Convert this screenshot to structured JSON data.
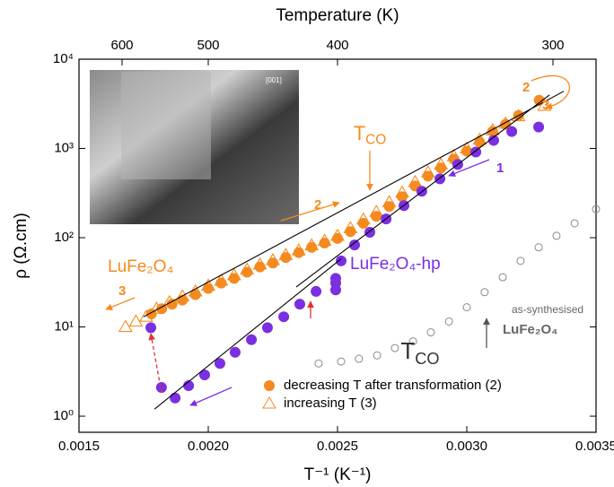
{
  "chart_data": {
    "type": "scatter",
    "x2label": "Temperature (K)",
    "xlabel": "T⁻¹ (K⁻¹)",
    "ylabel": "ρ (Ω.cm)",
    "xlim": [
      0.0015,
      0.0035
    ],
    "xticks": [
      {
        "value": 0.0015,
        "label": "0.0015"
      },
      {
        "value": 0.002,
        "label": "0.0020"
      },
      {
        "value": 0.0025,
        "label": "0.0025"
      },
      {
        "value": 0.003,
        "label": "0.0030"
      },
      {
        "value": 0.0035,
        "label": "0.0035"
      }
    ],
    "x2scale": "reciprocal",
    "x2ticks": [
      600,
      500,
      400,
      300
    ],
    "ylim": [
      0.66,
      10000
    ],
    "yscale": "log",
    "yticks": [
      {
        "value": 1,
        "label": "10⁰"
      },
      {
        "value": 10,
        "label": "10¹"
      },
      {
        "value": 100,
        "label": "10²"
      },
      {
        "value": 1000,
        "label": "10³"
      },
      {
        "value": 10000,
        "label": "10⁴"
      }
    ],
    "legend": "lower right",
    "series": [
      {
        "name": "decreasing T after transformation (2)",
        "color": "#f58a1f",
        "marker": "circle",
        "x": [
          0.00178,
          0.00182,
          0.00186,
          0.0019,
          0.00195,
          0.002,
          0.00205,
          0.0021,
          0.00215,
          0.0022,
          0.00225,
          0.0023,
          0.00235,
          0.0024,
          0.00245,
          0.0025,
          0.00255,
          0.0026,
          0.00265,
          0.0027,
          0.00275,
          0.0028,
          0.00285,
          0.0029,
          0.00295,
          0.003,
          0.00305,
          0.0031,
          0.00315,
          0.0032,
          0.00328
        ],
        "values": [
          14,
          16,
          18,
          20,
          23,
          27,
          31,
          35,
          41,
          47,
          52,
          60,
          68,
          78,
          87,
          98,
          117,
          145,
          174,
          224,
          288,
          380,
          490,
          603,
          759,
          933,
          1175,
          1549,
          1862,
          2344,
          3467
        ]
      },
      {
        "name": "increasing T (3)",
        "color": "#f58a1f",
        "marker": "triangle-open",
        "x": [
          0.00168,
          0.00172,
          0.00176,
          0.0018,
          0.00185,
          0.0019,
          0.00195,
          0.002,
          0.00205,
          0.0021,
          0.00215,
          0.0022,
          0.00225,
          0.0023,
          0.00235,
          0.0024,
          0.00245,
          0.0025,
          0.00255,
          0.0026,
          0.00265,
          0.0027,
          0.00275,
          0.0028,
          0.00285,
          0.0029,
          0.00295,
          0.003,
          0.00305,
          0.0031,
          0.00315,
          0.0032,
          0.0033
        ],
        "values": [
          10,
          11.5,
          13,
          16,
          19,
          22,
          25,
          29,
          33,
          38,
          44,
          50,
          56,
          64,
          72,
          82,
          92,
          105,
          128,
          160,
          195,
          250,
          320,
          420,
          540,
          660,
          820,
          1000,
          1250,
          1600,
          1900,
          2300,
          3000
        ]
      },
      {
        "color": "#7a2fe0",
        "marker": "circle",
        "x": [
          0.001778,
          0.001819,
          0.001872,
          0.001924,
          0.001986,
          0.002045,
          0.002104,
          0.002167,
          0.002229,
          0.002292,
          0.002354,
          0.002417,
          0.002493,
          0.002493,
          0.002493,
          0.002514,
          0.002566,
          0.002625,
          0.002688,
          0.002757,
          0.002826,
          0.002896,
          0.002965,
          0.003035,
          0.003104,
          0.003174,
          0.003278
        ],
        "values": [
          9.8,
          2.1,
          1.6,
          2.2,
          2.9,
          3.9,
          5.2,
          7.2,
          9.8,
          13,
          18,
          25,
          26,
          31,
          35,
          55,
          83,
          115,
          162,
          229,
          331,
          457,
          661,
          912,
          1230,
          1549,
          1738
        ]
      },
      {
        "color": "#8a8a8a",
        "marker": "circle-open",
        "x": [
          0.002427,
          0.002514,
          0.002583,
          0.002653,
          0.002722,
          0.002792,
          0.002861,
          0.002931,
          0.003,
          0.003069,
          0.003139,
          0.003208,
          0.003278,
          0.003347,
          0.003417,
          0.0035
        ],
        "values": [
          3.9,
          4.1,
          4.4,
          4.8,
          5.8,
          6.9,
          8.7,
          11.5,
          16.6,
          24.5,
          36,
          55,
          78,
          105,
          145,
          209
        ]
      }
    ],
    "fits": [
      {
        "x": [
          0.00175,
          0.003375
        ],
        "values": [
          13,
          4365
        ]
      },
      {
        "x": [
          0.001792,
          0.002514
        ],
        "values": [
          1.2,
          58
        ]
      },
      {
        "x": [
          0.00234,
          0.00332
        ],
        "values": [
          28,
          3981
        ]
      }
    ],
    "annotations": [
      {
        "text": "T",
        "sub": "CO",
        "color": "#f58a1f"
      },
      {
        "text": "2",
        "color": "#f58a1f"
      },
      {
        "text": "3",
        "color": "#f58a1f"
      },
      {
        "text": "2",
        "color": "#f58a1f"
      },
      {
        "text": "3",
        "color": "#f58a1f"
      },
      {
        "text": "1",
        "color": "#7a2fe0"
      },
      {
        "text": "LuFe₂O₄",
        "color": "#f58a1f"
      },
      {
        "text": "LuFe₂O₄-hp",
        "color": "#7a2fe0"
      },
      {
        "text": "as-synthesised",
        "color": "#666666"
      },
      {
        "text": "LuFe₂O₄",
        "color": "#666666"
      },
      {
        "text": "T",
        "sub": "CO",
        "color": "#333333"
      }
    ],
    "inset_label": "[001]"
  }
}
